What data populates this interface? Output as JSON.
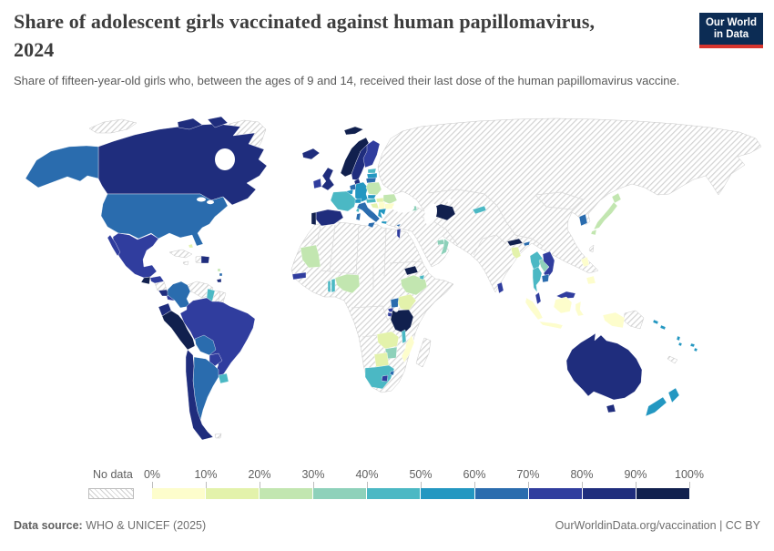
{
  "header": {
    "title_line1": "Share of adolescent girls vaccinated against human papillomavirus,",
    "title_line2": "2024",
    "subtitle": "Share of fifteen-year-old girls who, between the ages of 9 and 14, received their last dose of the human papillomavirus vaccine.",
    "logo": {
      "line1": "Our World",
      "line2": "in Data",
      "bg": "#0c2c54",
      "accent": "#d7352e"
    }
  },
  "legend": {
    "no_data_label": "No data",
    "tick_labels": [
      "0%",
      "10%",
      "20%",
      "30%",
      "40%",
      "50%",
      "60%",
      "70%",
      "80%",
      "90%",
      "100%"
    ],
    "bin_colors": [
      "#fdfdcc",
      "#e3f2ab",
      "#c2e6b0",
      "#8ed1ba",
      "#4bb8c4",
      "#2397c1",
      "#2a6cae",
      "#303d9e",
      "#1f2d7d",
      "#11204e"
    ]
  },
  "footer": {
    "source_label": "Data source:",
    "source_value": " WHO & UNICEF (2025)",
    "right_text": "OurWorldinData.org/vaccination | CC BY"
  },
  "chart_data": {
    "type": "choropleth",
    "title": "Share of adolescent girls vaccinated against human papillomavirus, 2024",
    "subtitle": "Share of fifteen-year-old girls who, between the ages of 9 and 14, received their last dose of the human papillomavirus vaccine.",
    "unit": "%",
    "source": "WHO & UNICEF (2025)",
    "color_scheme": "YlGnBu",
    "no_data_style": "diagonal-hatch",
    "bins": [
      "0-10%",
      "10-20%",
      "20-30%",
      "30-40%",
      "40-50%",
      "50-60%",
      "60-70%",
      "70-80%",
      "80-90%",
      "90-100%"
    ],
    "countries": {
      "canada": 9,
      "united-states": 7,
      "mexico": 8,
      "guatemala": 10,
      "honduras": 8,
      "costa-rica": 9,
      "panama": 8,
      "dominican-republic": 9,
      "bahamas": 2,
      "saint-lucia": 3,
      "barbados": 7,
      "trinidad-and-tobago": 9,
      "colombia": 7,
      "guyana": 5,
      "ecuador": 9,
      "peru": 10,
      "brazil": 8,
      "bolivia": 7,
      "paraguay": 8,
      "uruguay": 5,
      "chile": 9,
      "argentina": 7,
      "iceland": 9,
      "norway": 10,
      "sweden": 9,
      "finland": 8,
      "denmark": 9,
      "united-kingdom": 9,
      "ireland": 8,
      "netherlands": 7,
      "belgium": 6,
      "germany": 6,
      "france": 5,
      "spain": 9,
      "portugal": 10,
      "switzerland": 6,
      "italy": 7,
      "austria": 5,
      "czechia": 6,
      "poland": 3,
      "hungary": 2,
      "croatia": 2,
      "serbia": 1,
      "romania": 3,
      "bulgaria": 1,
      "greece": 6,
      "estonia": 5,
      "latvia": 6,
      "lithuania": 7,
      "georgia": 4,
      "cyprus": 7,
      "israel": 8,
      "turkmenistan": 10,
      "kyrgyzstan": 5,
      "united-arab-emirates": 4,
      "oman": 4,
      "mauritania": 3,
      "senegal": 8,
      "nigeria": 3,
      "togo": 5,
      "benin": 5,
      "ethiopia": 3,
      "eritrea": 10,
      "djibouti": 5,
      "uganda": 7,
      "kenya": 2,
      "rwanda": 8,
      "burundi": 8,
      "tanzania": 10,
      "malawi": 5,
      "mozambique": 1,
      "zambia": 2,
      "zimbabwe": 4,
      "botswana": 2,
      "south-africa": 5,
      "lesotho": 8,
      "eswatini": 7,
      "nepal": 10,
      "bhutan": 7,
      "bangladesh": 2,
      "myanmar": 5,
      "laos": 4,
      "thailand": 5,
      "vietnam": 8,
      "cambodia": 7,
      "sri-lanka": 8,
      "malaysia": 8,
      "indonesia": 1,
      "philippines": 1,
      "japan": 3,
      "south-korea": 7,
      "australia": 9,
      "new-zealand": 6,
      "fiji": 6,
      "vanuatu": 6,
      "solomon-islands": 6
    }
  }
}
